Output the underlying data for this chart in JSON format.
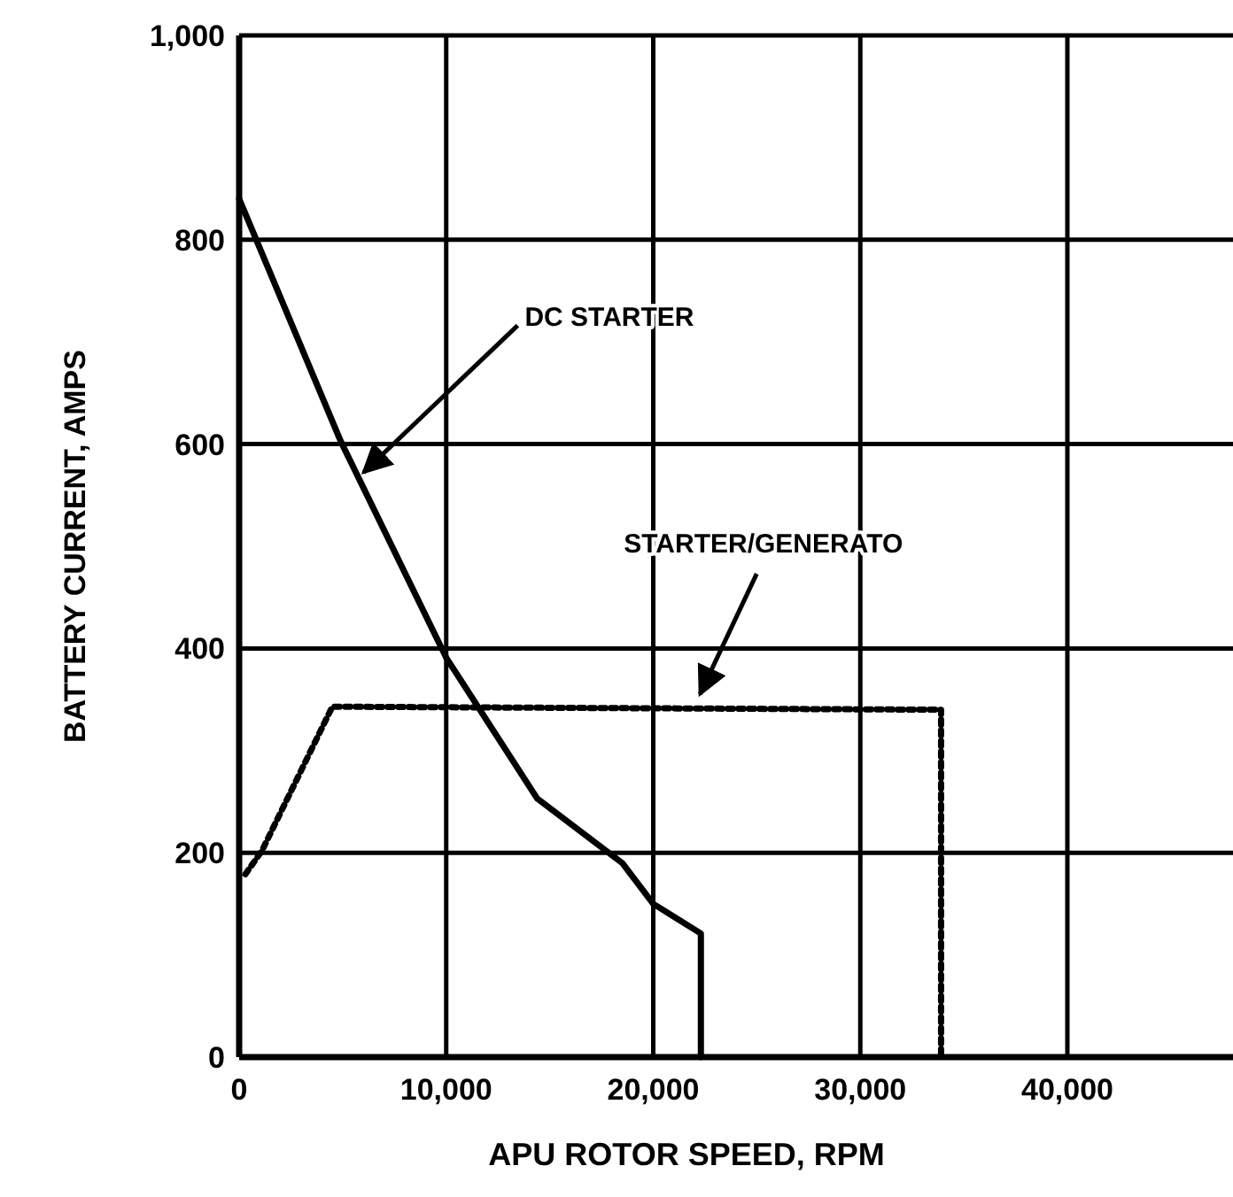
{
  "chart_data": {
    "type": "line",
    "xlabel": "APU ROTOR SPEED, RPM",
    "ylabel": "BATTERY CURRENT, AMPS",
    "series": [
      {
        "color": "#000000",
        "line_style": "solid",
        "x": [
          0,
          4900,
          10000,
          14400,
          18500,
          20000,
          22300,
          22300
        ],
        "values": [
          840,
          603,
          391,
          253,
          190,
          150,
          121,
          0
        ]
      },
      {
        "color": "#000000",
        "line_style": "dotted",
        "x": [
          300,
          1100,
          4500,
          33900,
          33900
        ],
        "values": [
          179,
          202,
          343,
          340,
          0
        ]
      }
    ],
    "annotations": [
      {
        "text": "DC STARTER",
        "x": 5750,
        "y": 567
      },
      {
        "text": "STARTER/GENERATO",
        "x": 22000,
        "y": 350
      }
    ],
    "xlim": [
      0,
      48000
    ],
    "xticks": [
      0,
      {
        "value": 10000,
        "label": "10,000"
      },
      {
        "value": 20000,
        "label": "20,000"
      },
      {
        "value": 30000,
        "label": "30,000"
      },
      {
        "value": 40000,
        "label": "40,000"
      }
    ],
    "ylim": [
      0,
      1000
    ],
    "yticks": [
      0,
      200,
      400,
      600,
      800,
      {
        "value": 1000,
        "label": "1,000"
      }
    ],
    "grid": true
  }
}
